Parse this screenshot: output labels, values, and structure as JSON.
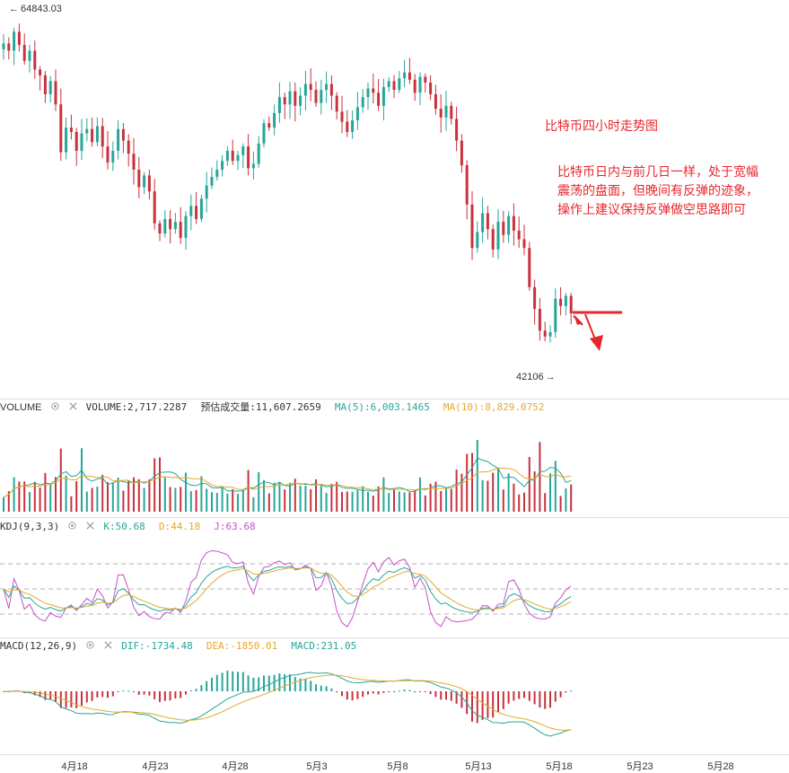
{
  "chart_data": [
    {
      "type": "candlestick",
      "title": "",
      "price_labels": {
        "high": "64843.03",
        "low": "42106"
      },
      "annotation": {
        "title": "比特币四小时走势图",
        "lines": [
          "比特币日内与前几日一样，处于宽幅",
          "震荡的盘面，但晚间有反弹的迹象，",
          "操作上建议保持反弹做空思路即可"
        ]
      },
      "x_ticks": [
        "4月18",
        "4月23",
        "4月28",
        "5月3",
        "5月8",
        "5月13",
        "5月18",
        "5月23",
        "5月28"
      ],
      "ylim": [
        41000,
        66500
      ],
      "colors": {
        "up": "#26a69a",
        "down": "#c8323c"
      },
      "close_series": [
        64000,
        63500,
        64800,
        63900,
        62800,
        63500,
        62200,
        61800,
        60500,
        61400,
        59800,
        56500,
        58200,
        57900,
        56600,
        57800,
        58100,
        57200,
        58300,
        56900,
        55800,
        56600,
        58100,
        57300,
        56400,
        55300,
        54100,
        54900,
        53800,
        51600,
        50900,
        51900,
        51200,
        51700,
        50600,
        52100,
        52800,
        51900,
        53300,
        54200,
        54800,
        55300,
        55900,
        56600,
        55900,
        56300,
        56900,
        55400,
        55700,
        57100,
        58500,
        58200,
        59200,
        60300,
        59800,
        60700,
        59700,
        60400,
        61200,
        60800,
        59900,
        60800,
        61200,
        60400,
        59300,
        58600,
        57900,
        58700,
        59600,
        60300,
        60900,
        60600,
        59700,
        61000,
        61400,
        60800,
        61600,
        62000,
        61500,
        60600,
        61700,
        61300,
        60500,
        59500,
        58900,
        59700,
        58800,
        57300,
        55600,
        52900,
        49900,
        51000,
        52300,
        51200,
        49800,
        51700,
        50800,
        52100,
        51100,
        50500,
        49900,
        47200,
        45700,
        44200,
        43800,
        44100,
        46400,
        45900,
        46600,
        45400
      ],
      "volume": {
        "label": "VOLUME",
        "values": {
          "volume": "VOLUME:2,717.2287",
          "estimated": "预估成交量:11,607.2659",
          "ma5": "MA(5):6,003.1465",
          "ma10": "MA(10):8,829.0752"
        },
        "colors": {
          "ma5": "#26a69a",
          "ma10": "#e5a92b"
        }
      },
      "kdj": {
        "label": "KDJ(9,3,3)",
        "values": {
          "k": "K:50.68",
          "d": "D:44.18",
          "j": "J:63.68"
        },
        "colors": {
          "k": "#26a69a",
          "d": "#e5a92b",
          "j": "#c74fc9"
        }
      },
      "macd": {
        "label": "MACD(12,26,9)",
        "values": {
          "dif": "DIF:-1734.48",
          "dea": "DEA:-1850.01",
          "macd": "MACD:231.05"
        },
        "colors": {
          "dif": "#26a69a",
          "dea": "#e5a92b"
        }
      }
    }
  ]
}
